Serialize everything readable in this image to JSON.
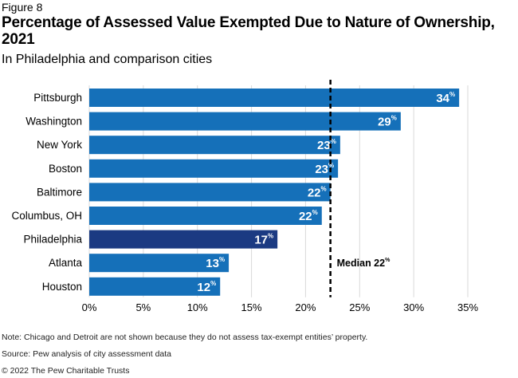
{
  "figure_label": "Figure 8",
  "chart_data": {
    "type": "bar",
    "orientation": "horizontal",
    "title": "Percentage of Assessed Value Exempted Due to Nature of Ownership, 2021",
    "subtitle": "In Philadelphia and comparison cities",
    "categories": [
      "Pittsburgh",
      "Washington",
      "New York",
      "Boston",
      "Baltimore",
      "Columbus, OH",
      "Philadelphia",
      "Atlanta",
      "Houston"
    ],
    "values": [
      34.2,
      28.8,
      23.2,
      23.0,
      22.3,
      21.5,
      17.4,
      12.9,
      12.1
    ],
    "data_labels": [
      "34",
      "29",
      "23",
      "23",
      "22",
      "22",
      "17",
      "13",
      "12"
    ],
    "label_unit": "%",
    "xlim": [
      0,
      35
    ],
    "xticks": [
      "0%",
      "5%",
      "10%",
      "15%",
      "20%",
      "25%",
      "30%",
      "35%"
    ],
    "grid": "vertical",
    "median": {
      "value": 22.3,
      "label": "Median 22",
      "unit": "%"
    },
    "colors": {
      "default": "#1570b9",
      "highlight": "#1b3a82",
      "highlight_category": "Philadelphia",
      "grid": "#d9d9d9",
      "median": "#000000"
    }
  },
  "notes": {
    "note": "Note: Chicago and Detroit are not shown because they do not assess tax-exempt entities’ property.",
    "source": "Source: Pew analysis of city assessment data",
    "copyright": "© 2022 The Pew Charitable Trusts"
  }
}
